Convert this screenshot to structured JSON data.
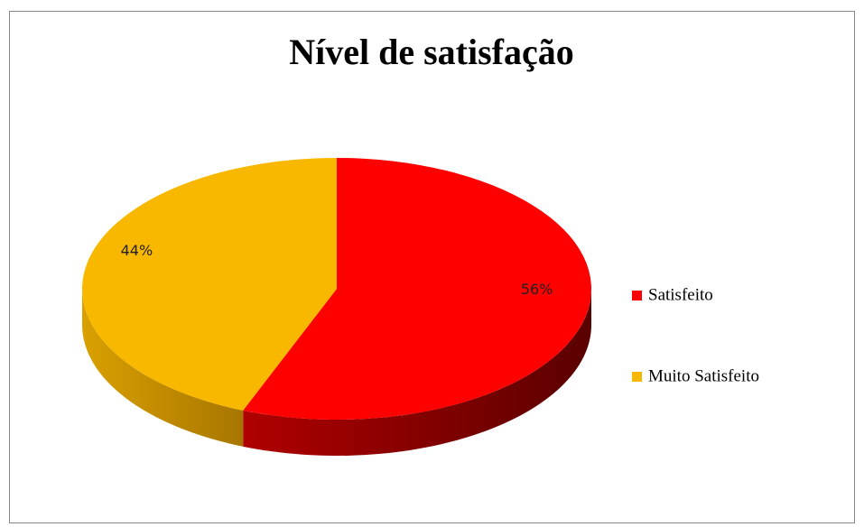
{
  "chart_data": {
    "type": "pie",
    "title": "Nível de satisfação",
    "categories": [
      "Satisfeito",
      "Muito Satisfeito"
    ],
    "values": [
      56,
      44
    ],
    "value_labels": [
      "56%",
      "44%"
    ],
    "colors": [
      "#ff0000",
      "#f9b800"
    ],
    "legend": "right"
  }
}
